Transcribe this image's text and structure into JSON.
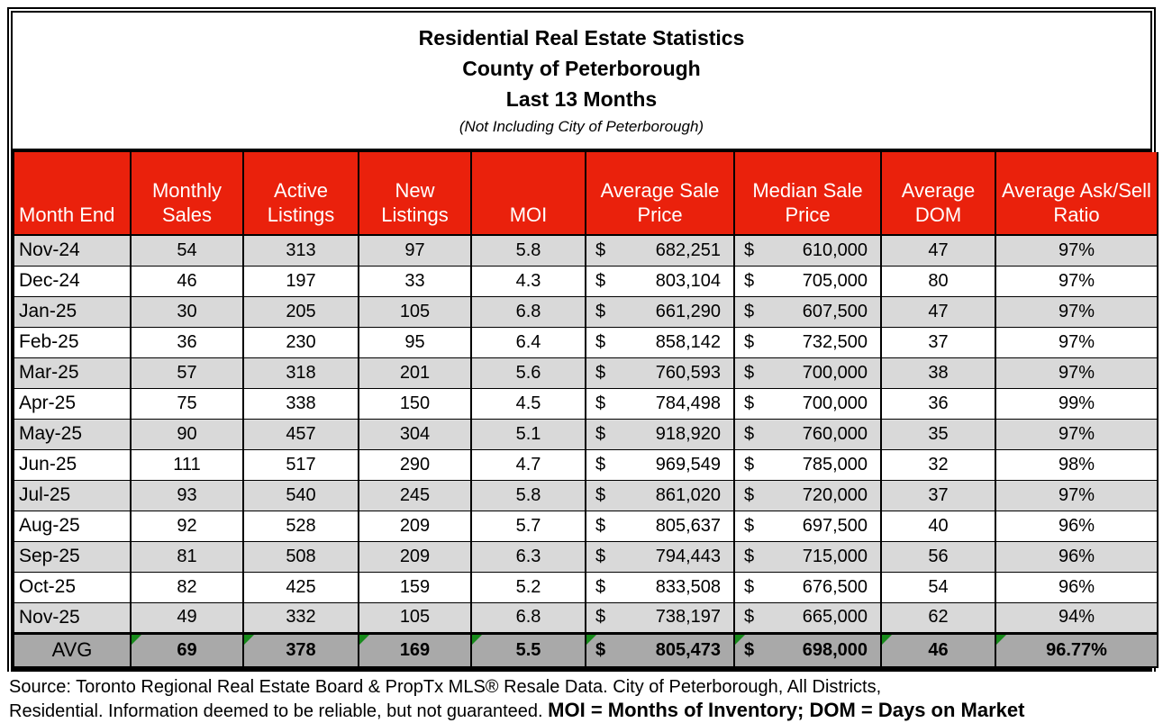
{
  "title": {
    "line1": "Residential Real Estate Statistics",
    "line2": "County of Peterborough",
    "line3": "Last 13 Months",
    "subtitle": "(Not Including City of Peterborough)"
  },
  "table": {
    "currency_symbol": "$",
    "columns": [
      {
        "id": "month",
        "label": "Month End",
        "type": "month"
      },
      {
        "id": "monthly_sales",
        "label": "Monthly Sales",
        "type": "number"
      },
      {
        "id": "active_listings",
        "label": "Active Listings",
        "type": "number"
      },
      {
        "id": "new_listings",
        "label": "New Listings",
        "type": "number"
      },
      {
        "id": "moi",
        "label": "MOI",
        "type": "number"
      },
      {
        "id": "avg_sale_price",
        "label": "Average Sale Price",
        "type": "price"
      },
      {
        "id": "median_sale_price",
        "label": "Median Sale Price",
        "type": "price"
      },
      {
        "id": "avg_dom",
        "label": "Average DOM",
        "type": "number"
      },
      {
        "id": "ask_sell_ratio",
        "label": "Average Ask/Sell Ratio",
        "type": "number"
      }
    ],
    "rows": [
      {
        "month": "Nov-24",
        "monthly_sales": "54",
        "active_listings": "313",
        "new_listings": "97",
        "moi": "5.8",
        "avg_sale_price": "682,251",
        "median_sale_price": "610,000",
        "avg_dom": "47",
        "ask_sell_ratio": "97%"
      },
      {
        "month": "Dec-24",
        "monthly_sales": "46",
        "active_listings": "197",
        "new_listings": "33",
        "moi": "4.3",
        "avg_sale_price": "803,104",
        "median_sale_price": "705,000",
        "avg_dom": "80",
        "ask_sell_ratio": "97%"
      },
      {
        "month": "Jan-25",
        "monthly_sales": "30",
        "active_listings": "205",
        "new_listings": "105",
        "moi": "6.8",
        "avg_sale_price": "661,290",
        "median_sale_price": "607,500",
        "avg_dom": "47",
        "ask_sell_ratio": "97%"
      },
      {
        "month": "Feb-25",
        "monthly_sales": "36",
        "active_listings": "230",
        "new_listings": "95",
        "moi": "6.4",
        "avg_sale_price": "858,142",
        "median_sale_price": "732,500",
        "avg_dom": "37",
        "ask_sell_ratio": "97%"
      },
      {
        "month": "Mar-25",
        "monthly_sales": "57",
        "active_listings": "318",
        "new_listings": "201",
        "moi": "5.6",
        "avg_sale_price": "760,593",
        "median_sale_price": "700,000",
        "avg_dom": "38",
        "ask_sell_ratio": "97%"
      },
      {
        "month": "Apr-25",
        "monthly_sales": "75",
        "active_listings": "338",
        "new_listings": "150",
        "moi": "4.5",
        "avg_sale_price": "784,498",
        "median_sale_price": "700,000",
        "avg_dom": "36",
        "ask_sell_ratio": "99%"
      },
      {
        "month": "May-25",
        "monthly_sales": "90",
        "active_listings": "457",
        "new_listings": "304",
        "moi": "5.1",
        "avg_sale_price": "918,920",
        "median_sale_price": "760,000",
        "avg_dom": "35",
        "ask_sell_ratio": "97%"
      },
      {
        "month": "Jun-25",
        "monthly_sales": "111",
        "active_listings": "517",
        "new_listings": "290",
        "moi": "4.7",
        "avg_sale_price": "969,549",
        "median_sale_price": "785,000",
        "avg_dom": "32",
        "ask_sell_ratio": "98%"
      },
      {
        "month": "Jul-25",
        "monthly_sales": "93",
        "active_listings": "540",
        "new_listings": "245",
        "moi": "5.8",
        "avg_sale_price": "861,020",
        "median_sale_price": "720,000",
        "avg_dom": "37",
        "ask_sell_ratio": "97%"
      },
      {
        "month": "Aug-25",
        "monthly_sales": "92",
        "active_listings": "528",
        "new_listings": "209",
        "moi": "5.7",
        "avg_sale_price": "805,637",
        "median_sale_price": "697,500",
        "avg_dom": "40",
        "ask_sell_ratio": "96%"
      },
      {
        "month": "Sep-25",
        "monthly_sales": "81",
        "active_listings": "508",
        "new_listings": "209",
        "moi": "6.3",
        "avg_sale_price": "794,443",
        "median_sale_price": "715,000",
        "avg_dom": "56",
        "ask_sell_ratio": "96%"
      },
      {
        "month": "Oct-25",
        "monthly_sales": "82",
        "active_listings": "425",
        "new_listings": "159",
        "moi": "5.2",
        "avg_sale_price": "833,508",
        "median_sale_price": "676,500",
        "avg_dom": "54",
        "ask_sell_ratio": "96%"
      },
      {
        "month": "Nov-25",
        "monthly_sales": "49",
        "active_listings": "332",
        "new_listings": "105",
        "moi": "6.8",
        "avg_sale_price": "738,197",
        "median_sale_price": "665,000",
        "avg_dom": "62",
        "ask_sell_ratio": "94%"
      }
    ],
    "avg_row": {
      "month": "AVG",
      "monthly_sales": "69",
      "active_listings": "378",
      "new_listings": "169",
      "moi": "5.5",
      "avg_sale_price": "805,473",
      "median_sale_price": "698,000",
      "avg_dom": "46",
      "ask_sell_ratio": "96.77%"
    }
  },
  "footer": {
    "line1": "Source: Toronto Regional Real Estate Board & PropTx MLS® Resale Data. City of Peterborough, All Districts,",
    "line2_regular": "Residential.  Information deemed to be reliable, but not guaranteed. ",
    "line2_bold": "MOI = Months of Inventory; DOM = Days on Market"
  },
  "colors": {
    "header_bg": "#EA210C",
    "header_text": "#FFFFFF",
    "row_shaded": "#D9D9D9",
    "row_plain": "#FFFFFF",
    "avg_row_bg": "#A9A9A9",
    "comment_flag_green": "#178A1B",
    "border": "#000000"
  }
}
